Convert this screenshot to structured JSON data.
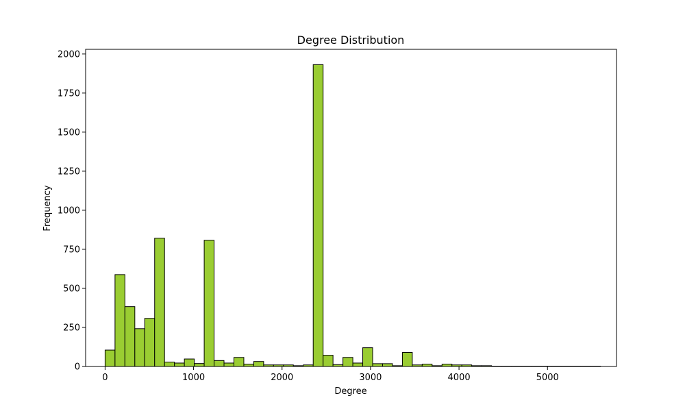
{
  "chart_data": {
    "type": "bar",
    "title": "Degree Distribution",
    "xlabel": "Degree",
    "ylabel": "Frequency",
    "xlim": [
      -220,
      5780
    ],
    "ylim": [
      0,
      2030
    ],
    "xticks": [
      0,
      1000,
      2000,
      3000,
      4000,
      5000
    ],
    "yticks": [
      0,
      250,
      500,
      750,
      1000,
      1250,
      1500,
      1750,
      2000
    ],
    "bin_start": 0,
    "bin_width": 112,
    "bar_color": "#9acd32",
    "edge_color": "#000000",
    "values": [
      105,
      588,
      383,
      242,
      308,
      821,
      28,
      22,
      48,
      19,
      808,
      38,
      22,
      58,
      15,
      32,
      10,
      10,
      10,
      5,
      10,
      1932,
      72,
      12,
      58,
      22,
      120,
      18,
      18,
      5,
      90,
      10,
      15,
      5,
      15,
      10,
      10,
      5,
      5,
      2,
      2,
      2,
      2,
      2,
      2,
      2,
      2,
      2,
      2,
      2
    ],
    "grid": false,
    "legend": "none"
  }
}
